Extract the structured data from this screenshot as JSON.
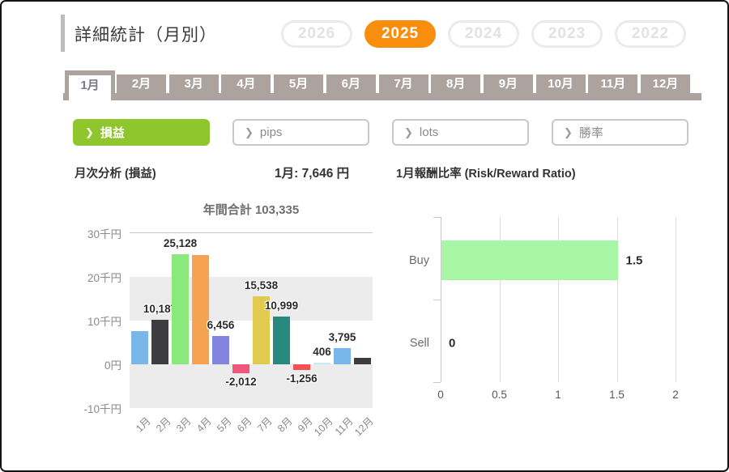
{
  "header": {
    "title": "詳細統計（月別）",
    "years": [
      {
        "label": "2026",
        "active": false
      },
      {
        "label": "2025",
        "active": true
      },
      {
        "label": "2024",
        "active": false
      },
      {
        "label": "2023",
        "active": false
      },
      {
        "label": "2022",
        "active": false
      }
    ]
  },
  "month_tabs": {
    "active": "1月",
    "items": [
      "1月",
      "2月",
      "3月",
      "4月",
      "5月",
      "6月",
      "7月",
      "8月",
      "9月",
      "10月",
      "11月",
      "12月"
    ]
  },
  "filters": [
    {
      "id": "pnl",
      "label": "損益",
      "active": true
    },
    {
      "id": "pips",
      "label": "pips",
      "active": false
    },
    {
      "id": "lots",
      "label": "lots",
      "active": false
    },
    {
      "id": "winrate",
      "label": "勝率",
      "active": false
    }
  ],
  "summary": {
    "left_title": "月次分析 (損益)",
    "month_value": "1月:  7,646 円",
    "right_title": "1月報酬比率 (Risk/Reward Ratio)"
  },
  "colors": {
    "accent_orange": "#f98e0e",
    "accent_green": "#8fc62e",
    "tab_taupe": "#aca29e",
    "band_gray": "#ececec",
    "rr_bar_green": "#a6f6a6"
  },
  "chart_data": [
    {
      "type": "bar",
      "title": "年間合計 103,335",
      "categories": [
        "1月",
        "2月",
        "3月",
        "4月",
        "5月",
        "6月",
        "7月",
        "8月",
        "9月",
        "10月",
        "11月",
        "12月"
      ],
      "values": [
        7646,
        10187,
        25128,
        24950,
        6456,
        -2012,
        15538,
        10999,
        -1256,
        406,
        3795,
        1498
      ],
      "bar_labels": [
        "",
        "10,187",
        "25,128",
        "",
        "6,456",
        "-2,012",
        "15,538",
        "10,999",
        "-1,256",
        "406",
        "3,795",
        ""
      ],
      "bar_colors": [
        "#79b7ea",
        "#3d3d41",
        "#8be87c",
        "#f5a351",
        "#8384e0",
        "#f2557a",
        "#e0cb50",
        "#28897f",
        "#f25352",
        "#c5ebf2",
        "#79b7ea",
        "#3d3d41"
      ],
      "yticks": [
        {
          "value": 30000,
          "label": "30千円"
        },
        {
          "value": 20000,
          "label": "20千円"
        },
        {
          "value": 10000,
          "label": "10千円"
        },
        {
          "value": 0,
          "label": "0円"
        },
        {
          "value": -10000,
          "label": "-10千円"
        }
      ],
      "ylim": [
        -10000,
        30000
      ],
      "legend": "none",
      "grid": "horizontal-bands"
    },
    {
      "type": "bar-horizontal",
      "title": "1月報酬比率 (Risk/Reward Ratio)",
      "categories": [
        "Buy",
        "Sell"
      ],
      "values": [
        1.5,
        0
      ],
      "bar_labels": [
        "1.5",
        "0"
      ],
      "xticks": [
        {
          "value": 0,
          "label": "0"
        },
        {
          "value": 0.5,
          "label": "0.5"
        },
        {
          "value": 1,
          "label": "1"
        },
        {
          "value": 1.5,
          "label": "1.5"
        },
        {
          "value": 2,
          "label": "2"
        }
      ],
      "xlim": [
        0,
        2
      ],
      "legend": "none",
      "grid": "vertical"
    }
  ]
}
